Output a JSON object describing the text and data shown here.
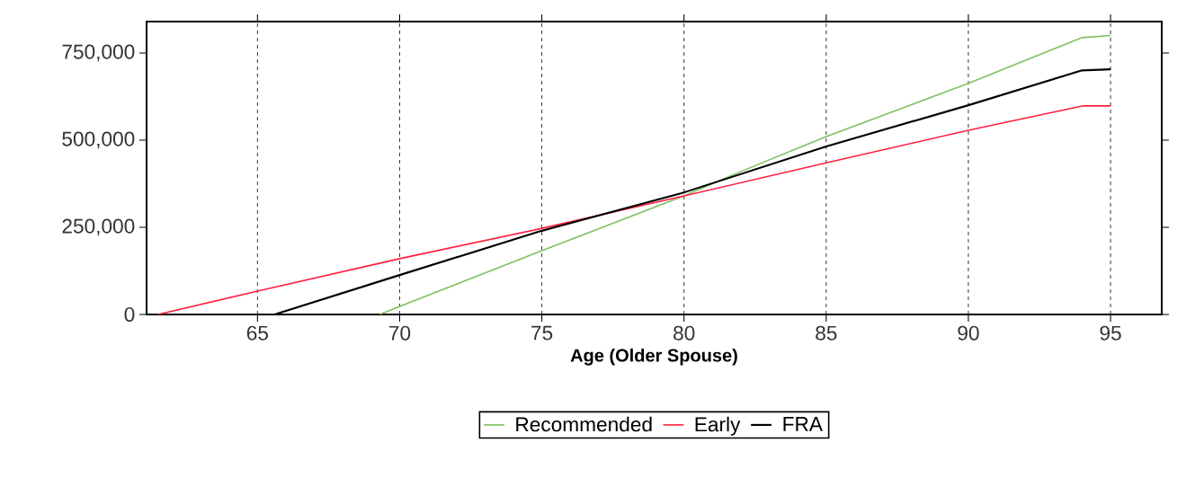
{
  "chart_data": {
    "type": "line",
    "xlabel": "Age (Older Spouse)",
    "xlim": [
      61.1,
      96.8
    ],
    "ylim": [
      0,
      840000
    ],
    "xticks": [
      65,
      70,
      75,
      80,
      85,
      90,
      95
    ],
    "yticks": [
      {
        "value": 0,
        "label": "0"
      },
      {
        "value": 250000,
        "label": "250,000"
      },
      {
        "value": 500000,
        "label": "500,000"
      },
      {
        "value": 750000,
        "label": "750,000"
      }
    ],
    "grid": "x",
    "legend": "bottom",
    "line_style": "solid",
    "marker": "none",
    "series": [
      {
        "name": "Recommended",
        "color": "#7fbf5f",
        "x": [
          69.3,
          70,
          75,
          80,
          82,
          85,
          90,
          94,
          95
        ],
        "values": [
          0,
          23000,
          183000,
          340000,
          410000,
          510000,
          663000,
          794000,
          800000
        ]
      },
      {
        "name": "Early",
        "color": "#ff2040",
        "x": [
          61.5,
          65,
          70,
          75,
          80,
          85,
          90,
          94,
          95
        ],
        "values": [
          0,
          67000,
          160000,
          247000,
          340000,
          435000,
          528000,
          598000,
          598000
        ]
      },
      {
        "name": "FRA",
        "color": "#000000",
        "x": [
          65.6,
          70,
          75,
          80,
          85,
          90,
          94,
          95
        ],
        "values": [
          0,
          113000,
          240000,
          350000,
          482000,
          600000,
          700000,
          703000
        ]
      }
    ]
  }
}
